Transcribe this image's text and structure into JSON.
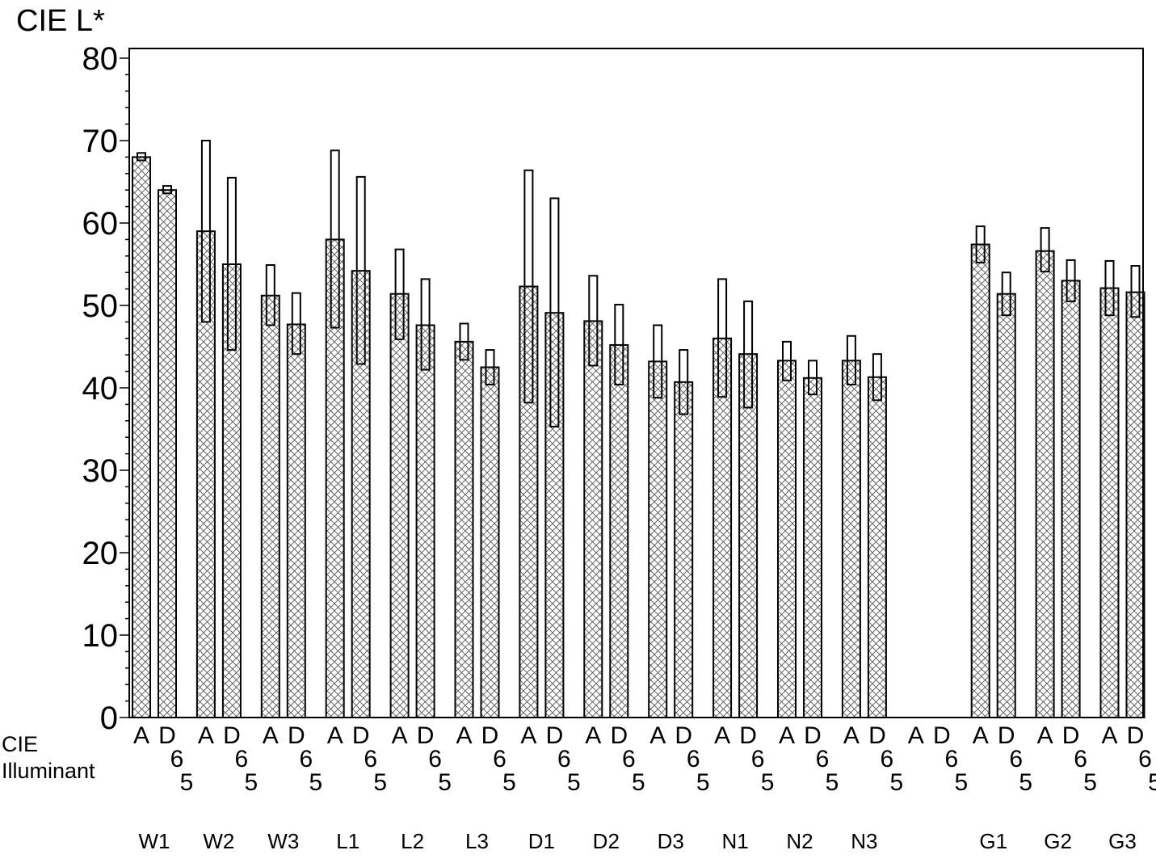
{
  "chart_data": {
    "type": "bar",
    "ylabel": "CIE L*",
    "ylim": [
      0,
      80
    ],
    "yticks": [
      0,
      10,
      20,
      30,
      40,
      50,
      60,
      70,
      80
    ],
    "xlabel_lines": [
      "CIE",
      "Illuminant"
    ],
    "illuminants": [
      "A",
      "D65"
    ],
    "illuminant_label_parts": {
      "A": [
        "A"
      ],
      "D65": [
        "D",
        "6",
        "5"
      ]
    },
    "groups": [
      {
        "label": "W1",
        "A": {
          "mean": 68,
          "low": 67.6,
          "high": 68.5
        },
        "D65": {
          "mean": 64,
          "low": 63.6,
          "high": 64.5
        }
      },
      {
        "label": "W2",
        "A": {
          "mean": 59,
          "low": 48,
          "high": 70
        },
        "D65": {
          "mean": 55,
          "low": 44.6,
          "high": 65.5
        }
      },
      {
        "label": "W3",
        "A": {
          "mean": 51.2,
          "low": 47.6,
          "high": 54.9
        },
        "D65": {
          "mean": 47.7,
          "low": 44.1,
          "high": 51.5
        }
      },
      {
        "label": "L1",
        "A": {
          "mean": 58,
          "low": 47.3,
          "high": 68.8
        },
        "D65": {
          "mean": 54.2,
          "low": 42.9,
          "high": 65.6
        }
      },
      {
        "label": "L2",
        "A": {
          "mean": 51.4,
          "low": 45.9,
          "high": 56.8
        },
        "D65": {
          "mean": 47.6,
          "low": 42.2,
          "high": 53.2
        }
      },
      {
        "label": "L3",
        "A": {
          "mean": 45.6,
          "low": 43.4,
          "high": 47.8
        },
        "D65": {
          "mean": 42.5,
          "low": 40.4,
          "high": 44.6
        }
      },
      {
        "label": "D1",
        "A": {
          "mean": 52.3,
          "low": 38.2,
          "high": 66.4
        },
        "D65": {
          "mean": 49.1,
          "low": 35.3,
          "high": 63
        }
      },
      {
        "label": "D2",
        "A": {
          "mean": 48.1,
          "low": 42.7,
          "high": 53.6
        },
        "D65": {
          "mean": 45.2,
          "low": 40.4,
          "high": 50.1
        }
      },
      {
        "label": "D3",
        "A": {
          "mean": 43.2,
          "low": 38.8,
          "high": 47.6
        },
        "D65": {
          "mean": 40.7,
          "low": 36.8,
          "high": 44.6
        }
      },
      {
        "label": "N1",
        "A": {
          "mean": 46,
          "low": 38.9,
          "high": 53.2
        },
        "D65": {
          "mean": 44.1,
          "low": 37.6,
          "high": 50.5
        }
      },
      {
        "label": "N2",
        "A": {
          "mean": 43.3,
          "low": 40.9,
          "high": 45.6
        },
        "D65": {
          "mean": 41.2,
          "low": 39.2,
          "high": 43.3
        }
      },
      {
        "label": "N3",
        "A": {
          "mean": 43.3,
          "low": 40.4,
          "high": 46.3
        },
        "D65": {
          "mean": 41.3,
          "low": 38.5,
          "high": 44.1
        }
      },
      {
        "label": "",
        "A": null,
        "D65": null
      },
      {
        "label": "G1",
        "A": {
          "mean": 57.4,
          "low": 55.2,
          "high": 59.6
        },
        "D65": {
          "mean": 51.4,
          "low": 48.8,
          "high": 54
        }
      },
      {
        "label": "G2",
        "A": {
          "mean": 56.6,
          "low": 54.1,
          "high": 59.4
        },
        "D65": {
          "mean": 53,
          "low": 50.5,
          "high": 55.5
        }
      },
      {
        "label": "G3",
        "A": {
          "mean": 52.1,
          "low": 48.8,
          "high": 55.4
        },
        "D65": {
          "mean": 51.6,
          "low": 48.6,
          "high": 54.8
        }
      }
    ]
  },
  "colors": {
    "bar_stroke": "#000000",
    "hatch": "#444444",
    "background": "#ffffff"
  }
}
